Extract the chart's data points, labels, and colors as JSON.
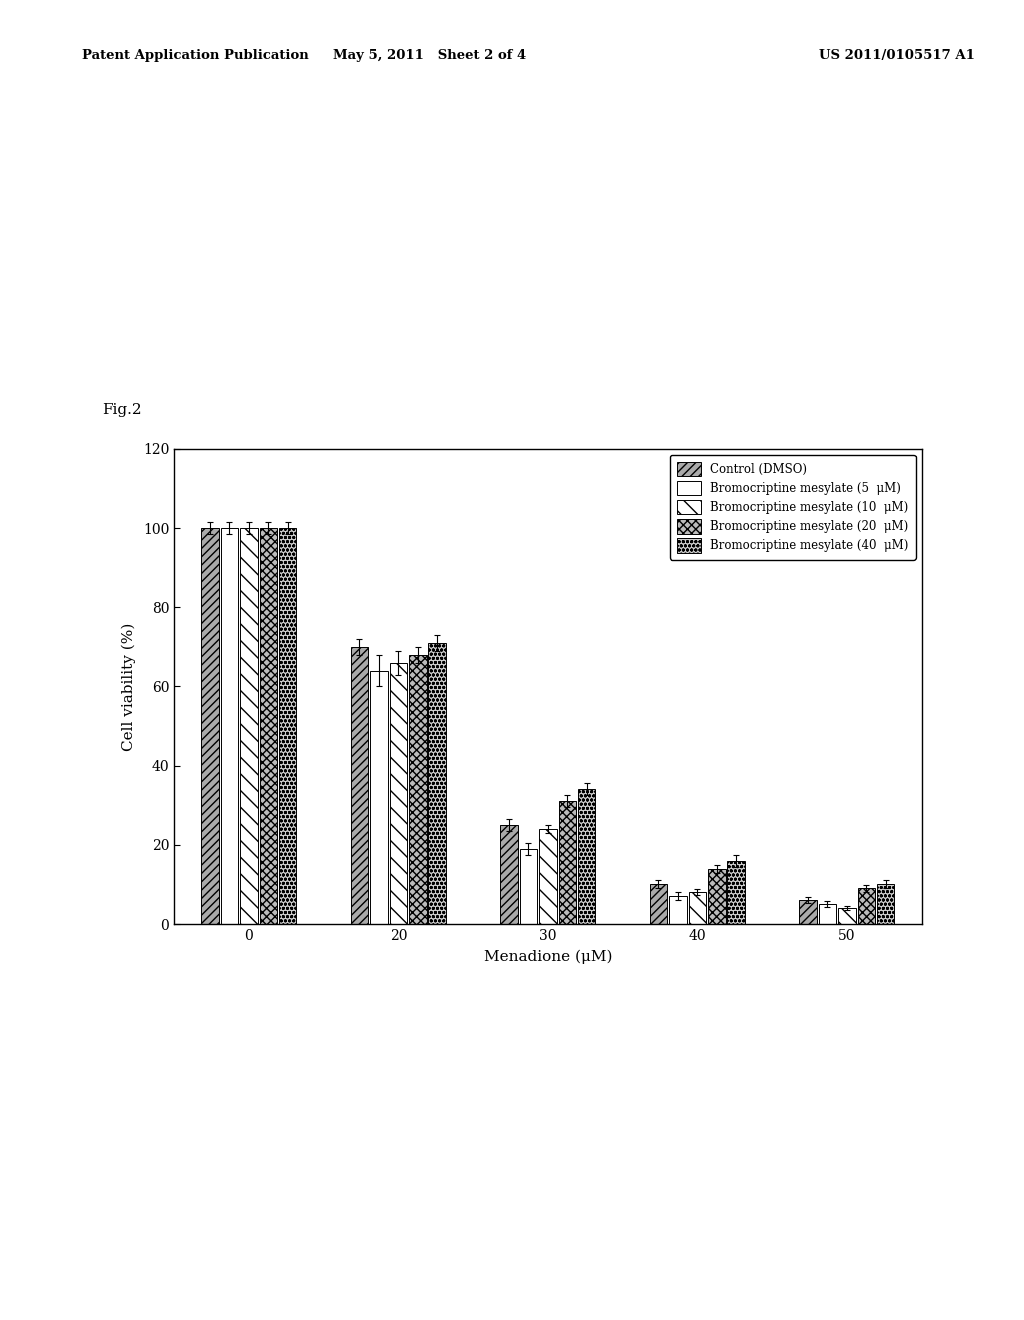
{
  "fig_label": "Fig.2",
  "xlabel": "Menadione (μM)",
  "ylabel": "Cell viability (%)",
  "ylim": [
    0,
    120
  ],
  "yticks": [
    0,
    20,
    40,
    60,
    80,
    100,
    120
  ],
  "x_ticklabels": [
    "0",
    "20",
    "30",
    "40",
    "50"
  ],
  "series": [
    {
      "label": "Control (DMSO)",
      "hatch": "chevron",
      "facecolor": "#aaaaaa",
      "values": [
        100,
        70,
        25,
        10,
        6
      ],
      "errors": [
        1.5,
        2.0,
        1.5,
        1.0,
        0.8
      ]
    },
    {
      "label": "Bromocriptine mesylate (5  μM)",
      "hatch": "none",
      "facecolor": "#ffffff",
      "values": [
        100,
        64,
        19,
        7,
        5
      ],
      "errors": [
        1.5,
        4.0,
        1.5,
        1.0,
        0.8
      ]
    },
    {
      "label": "Bromocriptine mesylate (10  μM)",
      "hatch": "diag",
      "facecolor": "#ffffff",
      "values": [
        100,
        66,
        24,
        8,
        4
      ],
      "errors": [
        1.5,
        3.0,
        1.0,
        0.8,
        0.5
      ]
    },
    {
      "label": "Bromocriptine mesylate (20  μM)",
      "hatch": "cross_diag",
      "facecolor": "#bbbbbb",
      "values": [
        100,
        68,
        31,
        14,
        9
      ],
      "errors": [
        1.5,
        2.0,
        1.5,
        1.0,
        0.8
      ]
    },
    {
      "label": "Bromocriptine mesylate (40  μM)",
      "hatch": "dots",
      "facecolor": "#cccccc",
      "values": [
        100,
        71,
        34,
        16,
        10
      ],
      "errors": [
        1.5,
        2.0,
        1.5,
        1.5,
        1.0
      ]
    }
  ],
  "bar_width": 0.13,
  "background_color": "#ffffff",
  "header_left": "Patent Application Publication",
  "header_mid": "May 5, 2011   Sheet 2 of 4",
  "header_right": "US 2011/0105517 A1"
}
